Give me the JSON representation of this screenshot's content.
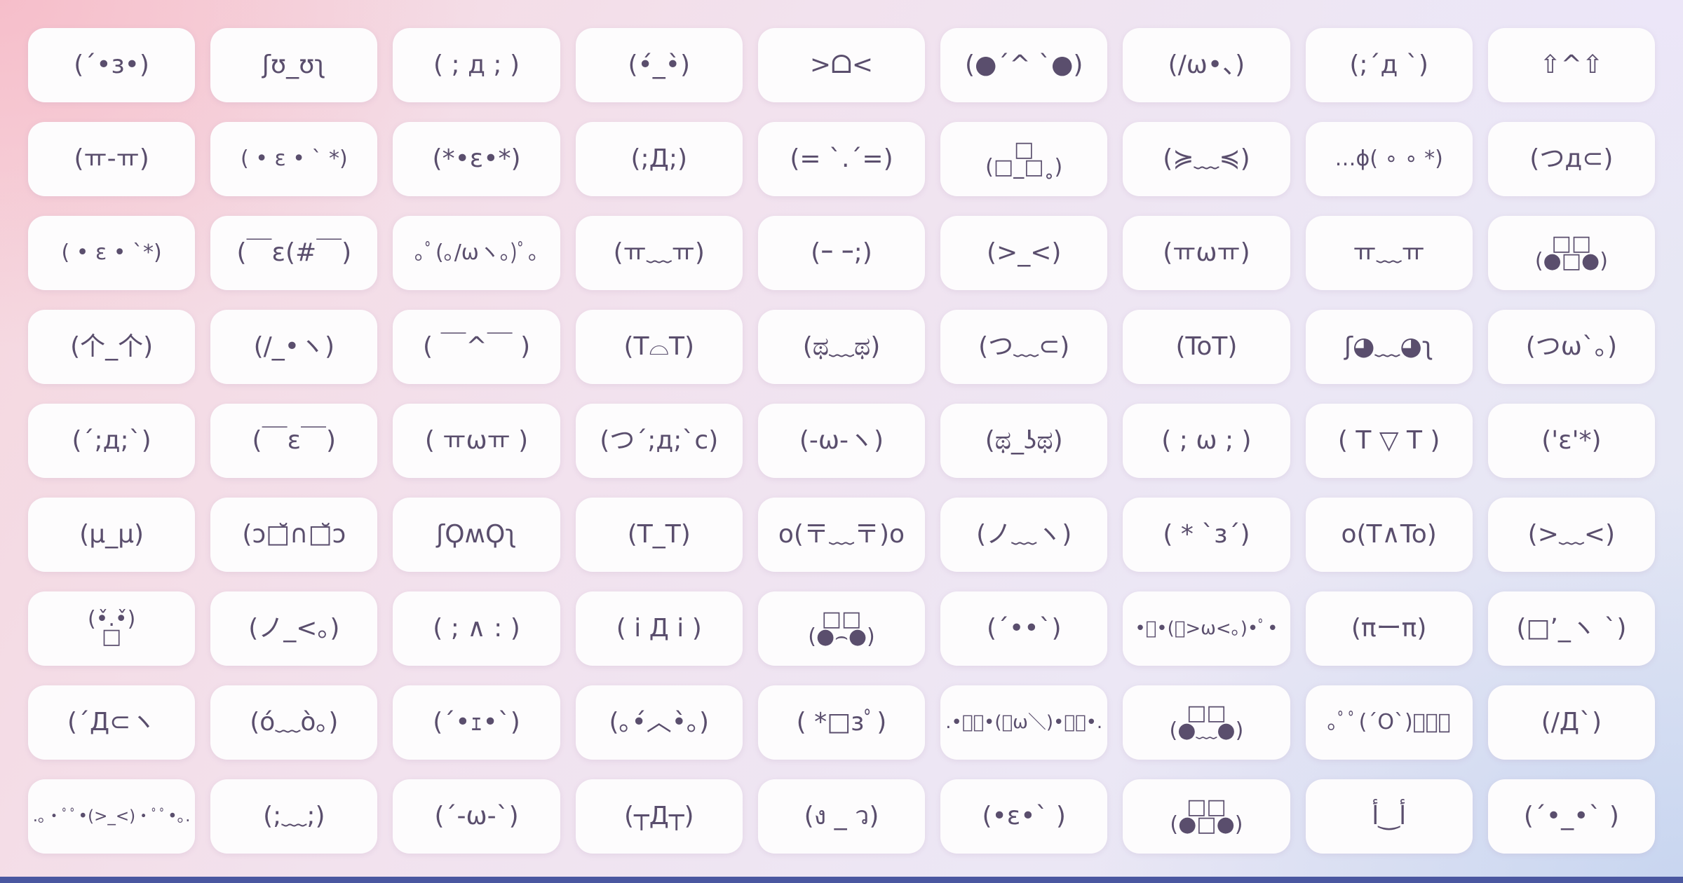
{
  "page": {
    "colors": {
      "kaomoji_text": "#5a4e6d",
      "card_background": "#fdfcfd",
      "bottom_bar": "#4a57a0",
      "background_top_left": "#f6bac7",
      "background_bottom_right": "#dfe6f4"
    }
  },
  "grid": {
    "items": [
      {
        "kaomoji": "(´•з•)"
      },
      {
        "kaomoji": "ʃʊ_ʊʅ"
      },
      {
        "kaomoji": "( ; д ; )"
      },
      {
        "kaomoji": "(•́_•̀)"
      },
      {
        "kaomoji": ">ᗝ<"
      },
      {
        "kaomoji": "(●´^ `●)"
      },
      {
        "kaomoji": "(/ω•、)"
      },
      {
        "kaomoji": "(;´д `)"
      },
      {
        "kaomoji": "⇧^⇧"
      },
      {
        "kaomoji": "(ㅠ-ㅠ)"
      },
      {
        "kaomoji": "( • ε • ` *)"
      },
      {
        "kaomoji": "(*•ε•*)"
      },
      {
        "kaomoji": "(;Д;)"
      },
      {
        "kaomoji": "(= `.´=)"
      },
      {
        "kaomoji": "□\n(□_□˳)"
      },
      {
        "kaomoji": "(≽﹏≼)"
      },
      {
        "kaomoji": "…ϕ( ∘ ∘ *)"
      },
      {
        "kaomoji": "(つд⊂)"
      },
      {
        "kaomoji": "( • ε • `*)"
      },
      {
        "kaomoji": "(￣ε(#￣)"
      },
      {
        "kaomoji": "｡ﾟ(｡/ωヽ｡)ﾟ｡"
      },
      {
        "kaomoji": "(ㅠ﹏ㅠ)"
      },
      {
        "kaomoji": "(ｰ ｰ;)"
      },
      {
        "kaomoji": "(>_<)"
      },
      {
        "kaomoji": "(ㅠωㅠ)"
      },
      {
        "kaomoji": "ㅠ﹏ㅠ"
      },
      {
        "kaomoji": "□□\n(●□●)"
      },
      {
        "kaomoji": "(个_个)"
      },
      {
        "kaomoji": "(/_•ヽ)"
      },
      {
        "kaomoji": "( ￣^￣ )"
      },
      {
        "kaomoji": "(T⌓T)"
      },
      {
        "kaomoji": "(ಥ﹏ಥ)"
      },
      {
        "kaomoji": "(つ﹏⊂)"
      },
      {
        "kaomoji": "(ToT)"
      },
      {
        "kaomoji": "ʃ◕﹏◕ʅ"
      },
      {
        "kaomoji": "(つω`｡)"
      },
      {
        "kaomoji": "(´;д;`)"
      },
      {
        "kaomoji": "(￣ε￣)"
      },
      {
        "kaomoji": "( ㅠωㅠ )"
      },
      {
        "kaomoji": "(つ´;д;`c)"
      },
      {
        "kaomoji": "(-ω-ヽ)"
      },
      {
        "kaomoji": "(ಥ_ʖಥ)"
      },
      {
        "kaomoji": "( ; ω ; )"
      },
      {
        "kaomoji": "( T ▽ T )"
      },
      {
        "kaomoji": "('ε'*)"
      },
      {
        "kaomoji": "(μ_μ)"
      },
      {
        "kaomoji": "(ɔ□̆∩□̆ɔ"
      },
      {
        "kaomoji": "ʃϘʍϘʅ"
      },
      {
        "kaomoji": "(T_T)"
      },
      {
        "kaomoji": "o(〒﹏〒)o"
      },
      {
        "kaomoji": "(ノ﹏ヽ)"
      },
      {
        "kaomoji": "( * `з´)"
      },
      {
        "kaomoji": "o(T∧To)"
      },
      {
        "kaomoji": "(>﹏<)"
      },
      {
        "kaomoji": "(•̌.•̌)\n□"
      },
      {
        "kaomoji": "(ノ_<。)"
      },
      {
        "kaomoji": "( ; ∧ : )"
      },
      {
        "kaomoji": "( i Д i )"
      },
      {
        "kaomoji": "□□\n(●⌢●)"
      },
      {
        "kaomoji": "(´••`)"
      },
      {
        "kaomoji": "•ﾟ•(｡>ω<｡)•ﾟ•"
      },
      {
        "kaomoji": "(πーπ)"
      },
      {
        "kaomoji": "(□’_ヽ `)"
      },
      {
        "kaomoji": "(´Д⊂ヽ"
      },
      {
        "kaomoji": "(ó﹏ò｡)"
      },
      {
        "kaomoji": "(´•ｪ•`)"
      },
      {
        "kaomoji": "(｡•́︿•̀｡)"
      },
      {
        "kaomoji": "( *□зﾟ)"
      },
      {
        "kaomoji": ".•ﾟﾟ•(／ω＼)•ﾟﾟ•."
      },
      {
        "kaomoji": "□□\n(●﹏●)"
      },
      {
        "kaomoji": "｡ﾟﾟ(´O`)ﾟﾟ｡"
      },
      {
        "kaomoji": "(/Д`)"
      },
      {
        "kaomoji": ".｡•ﾟﾟ•(>_<)•ﾟﾟ•｡."
      },
      {
        "kaomoji": "(;﹏;)"
      },
      {
        "kaomoji": "(´-ω-`)"
      },
      {
        "kaomoji": "(┬Д┬)"
      },
      {
        "kaomoji": "(ง _ ว)"
      },
      {
        "kaomoji": "(•ε•` )"
      },
      {
        "kaomoji": "□□\n(●□●)"
      },
      {
        "kaomoji": "أ‿أ"
      },
      {
        "kaomoji": "(´•_•` )"
      }
    ]
  }
}
